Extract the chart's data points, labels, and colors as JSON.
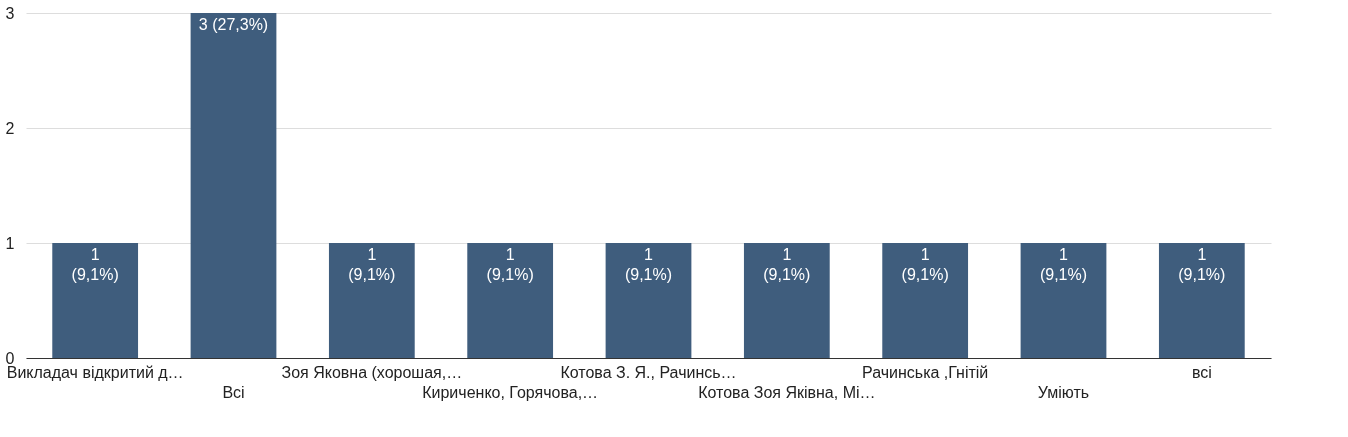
{
  "chart_data": {
    "type": "bar",
    "categories": [
      "Викладач відкритий д…",
      "Всі",
      "Зоя Яковна (хорошая,…",
      "Кириченко, Горячова,…",
      "Котова З. Я., Рачинсь…",
      "Котова Зоя Яківна, Мі…",
      "Рачинська ,Гнітій",
      "Уміють",
      "всі"
    ],
    "values": [
      1,
      3,
      1,
      1,
      1,
      1,
      1,
      1,
      1
    ],
    "value_labels": [
      "1\n(9,1%)",
      "3 (27,3%)",
      "1\n(9,1%)",
      "1\n(9,1%)",
      "1\n(9,1%)",
      "1\n(9,1%)",
      "1\n(9,1%)",
      "1\n(9,1%)",
      "1\n(9,1%)"
    ],
    "color": "#3f5d7d",
    "ylim": [
      0,
      3
    ],
    "yticks": [
      0,
      1,
      2,
      3
    ],
    "grid": "y"
  }
}
